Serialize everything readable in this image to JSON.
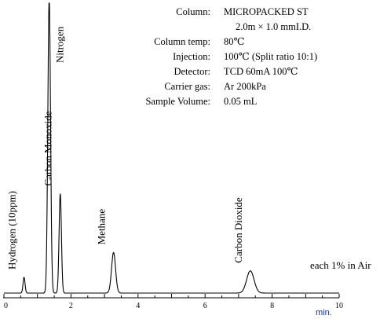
{
  "conditions": {
    "column_label": "Column:",
    "column_value": "MICROPACKED ST",
    "column_value_2": "2.0m  ×  1.0 mmI.D.",
    "column_temp_label": "Column temp:",
    "column_temp_value": "80℃",
    "injection_label": "Injection:",
    "injection_value": "100℃  (Split ratio 10:1)",
    "detector_label": "Detector:",
    "detector_value": "TCD   60mA    100℃",
    "carrier_gas_label": "Carrier gas:",
    "carrier_gas_value": "Ar    200kPa",
    "sample_volume_label": "Sample Volume:",
    "sample_volume_value": "0.05 mL"
  },
  "note": "each 1% in Air",
  "chart_data": {
    "type": "line",
    "xlabel": "min.",
    "xlim": [
      0,
      10
    ],
    "x_ticks": [
      0,
      2,
      4,
      6,
      8,
      10
    ],
    "ylim": [
      0,
      100
    ],
    "grid": false,
    "peaks": [
      {
        "name": "Hydrogen (10ppm)",
        "rt": 0.6,
        "height": 6,
        "width": 0.03
      },
      {
        "name": "Nitrogen",
        "rt": 1.35,
        "height": 113,
        "width": 0.04
      },
      {
        "name": "Carbon Monoxide",
        "rt": 1.68,
        "height": 38,
        "width": 0.035
      },
      {
        "name": "Methane",
        "rt": 3.27,
        "height": 15.5,
        "width": 0.06
      },
      {
        "name": "Carbon Dioxide",
        "rt": 7.35,
        "height": 8.5,
        "width": 0.11
      }
    ]
  }
}
